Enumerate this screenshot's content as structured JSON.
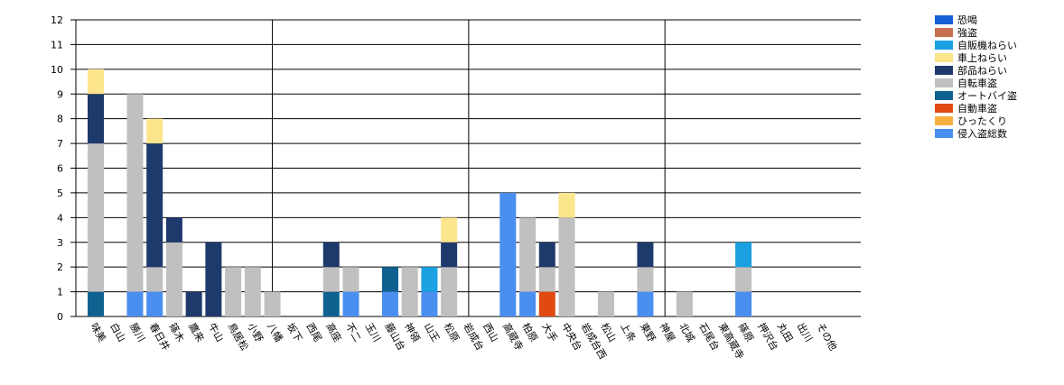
{
  "chart_data": {
    "type": "stacked_bar",
    "categories": [
      "味美",
      "白山",
      "勝川",
      "春日井",
      "篠木",
      "鷹来",
      "牛山",
      "鳥居松",
      "小野",
      "八幡",
      "坂下",
      "西尾",
      "高座",
      "不二",
      "玉川",
      "藤山台",
      "神領",
      "山王",
      "松原",
      "岩成台",
      "西山",
      "高蔵寺",
      "柏原",
      "大手",
      "中央台",
      "岩成台西",
      "松山",
      "上条",
      "東野",
      "神屋",
      "北城",
      "石尾台",
      "東高蔵寺",
      "篠原",
      "押沢台",
      "丸田",
      "出川",
      "その他"
    ],
    "series": [
      {
        "name": "恐喝",
        "color": "#1560d4",
        "values": [
          0,
          0,
          0,
          0,
          0,
          0,
          0,
          0,
          0,
          0,
          0,
          0,
          0,
          0,
          0,
          0,
          0,
          0,
          0,
          0,
          0,
          0,
          0,
          0,
          0,
          0,
          0,
          0,
          0,
          0,
          0,
          0,
          0,
          0,
          0,
          0,
          0,
          0
        ]
      },
      {
        "name": "強盗",
        "color": "#c87050",
        "values": [
          0,
          0,
          0,
          0,
          0,
          0,
          0,
          0,
          0,
          0,
          0,
          0,
          0,
          0,
          0,
          0,
          0,
          0,
          0,
          0,
          0,
          0,
          0,
          0,
          0,
          0,
          0,
          0,
          0,
          0,
          0,
          0,
          0,
          0,
          0,
          0,
          0,
          0
        ]
      },
      {
        "name": "自販機ねらい",
        "color": "#1ba1e2",
        "values": [
          0,
          0,
          0,
          0,
          0,
          0,
          0,
          0,
          0,
          0,
          0,
          0,
          0,
          0,
          0,
          0,
          0,
          1,
          0,
          0,
          0,
          0,
          0,
          0,
          0,
          0,
          0,
          0,
          0,
          0,
          0,
          0,
          0,
          1,
          0,
          0,
          0,
          0
        ]
      },
      {
        "name": "車上ねらい",
        "color": "#fde58c",
        "values": [
          1,
          0,
          0,
          1,
          0,
          0,
          0,
          0,
          0,
          0,
          0,
          0,
          0,
          0,
          0,
          0,
          0,
          0,
          1,
          0,
          0,
          0,
          0,
          0,
          1,
          0,
          0,
          0,
          0,
          0,
          0,
          0,
          0,
          0,
          0,
          0,
          0,
          0
        ]
      },
      {
        "name": "部品ねらい",
        "color": "#1e3a6c",
        "values": [
          2,
          0,
          0,
          5,
          1,
          1,
          3,
          0,
          0,
          0,
          0,
          0,
          1,
          0,
          0,
          0,
          0,
          0,
          1,
          0,
          0,
          0,
          0,
          1,
          0,
          0,
          0,
          0,
          1,
          0,
          0,
          0,
          0,
          0,
          0,
          0,
          0,
          0
        ]
      },
      {
        "name": "自転車盗",
        "color": "#c0c0c0",
        "values": [
          6,
          0,
          8,
          1,
          3,
          0,
          0,
          2,
          2,
          1,
          0,
          0,
          1,
          1,
          0,
          0,
          2,
          0,
          2,
          0,
          0,
          0,
          3,
          1,
          4,
          0,
          1,
          0,
          1,
          0,
          1,
          0,
          0,
          1,
          0,
          0,
          0,
          0
        ]
      },
      {
        "name": "オートバイ盗",
        "color": "#0f6290",
        "values": [
          1,
          0,
          0,
          0,
          0,
          0,
          0,
          0,
          0,
          0,
          0,
          0,
          1,
          0,
          0,
          1,
          0,
          0,
          0,
          0,
          0,
          0,
          0,
          0,
          0,
          0,
          0,
          0,
          0,
          0,
          0,
          0,
          0,
          0,
          0,
          0,
          0,
          0
        ]
      },
      {
        "name": "自動車盗",
        "color": "#e04a10",
        "values": [
          0,
          0,
          0,
          0,
          0,
          0,
          0,
          0,
          0,
          0,
          0,
          0,
          0,
          0,
          0,
          0,
          0,
          0,
          0,
          0,
          0,
          0,
          0,
          1,
          0,
          0,
          0,
          0,
          0,
          0,
          0,
          0,
          0,
          0,
          0,
          0,
          0,
          0
        ]
      },
      {
        "name": "ひったくり",
        "color": "#f7b040",
        "values": [
          0,
          0,
          0,
          0,
          0,
          0,
          0,
          0,
          0,
          0,
          0,
          0,
          0,
          0,
          0,
          0,
          0,
          0,
          0,
          0,
          0,
          0,
          0,
          0,
          0,
          0,
          0,
          0,
          0,
          0,
          0,
          0,
          0,
          0,
          0,
          0,
          0,
          0
        ]
      },
      {
        "name": "侵入盗総数",
        "color": "#4a8ef0",
        "values": [
          0,
          0,
          1,
          1,
          0,
          0,
          0,
          0,
          0,
          0,
          0,
          0,
          0,
          1,
          0,
          1,
          0,
          1,
          0,
          0,
          0,
          5,
          1,
          0,
          0,
          0,
          0,
          0,
          1,
          0,
          0,
          0,
          0,
          1,
          0,
          0,
          0,
          0
        ]
      }
    ],
    "ylim": [
      0,
      12
    ],
    "yticks": [
      0,
      1,
      2,
      3,
      4,
      5,
      6,
      7,
      8,
      9,
      10,
      11,
      12
    ],
    "grid": true,
    "legend": "top-right"
  }
}
